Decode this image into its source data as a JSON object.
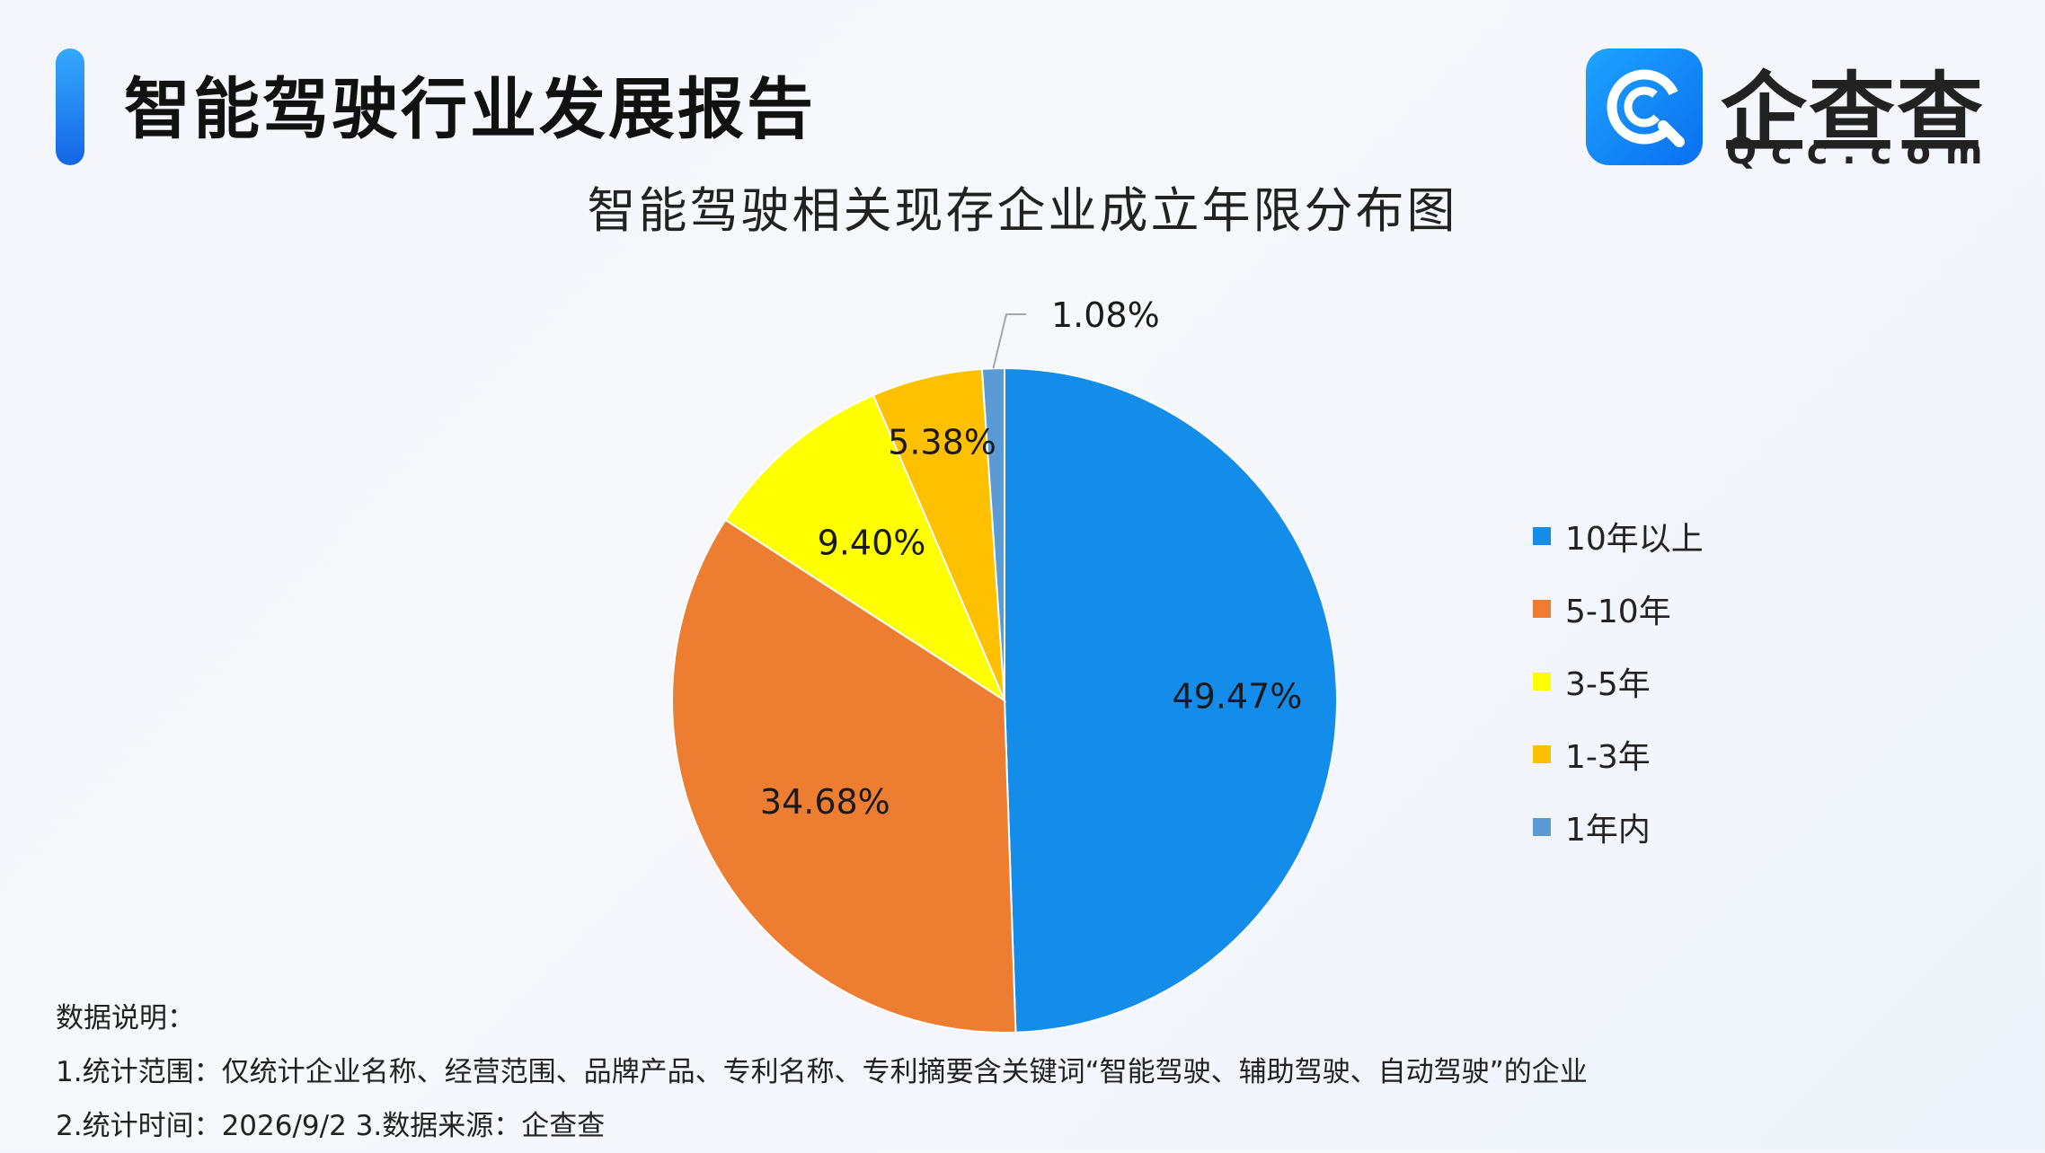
{
  "header": {
    "title": "智能驾驶行业发展报告",
    "logo_name": "企查查",
    "logo_domain": "Qcc.com"
  },
  "chart_data": {
    "type": "pie",
    "title": "智能驾驶相关现存企业成立年限分布图",
    "legend_position": "right",
    "categories": [
      "10年以上",
      "5-10年",
      "3-5年",
      "1-3年",
      "1年内"
    ],
    "values": [
      49.47,
      34.68,
      9.4,
      5.38,
      1.08
    ],
    "labels": [
      "49.47%",
      "34.68%",
      "9.40%",
      "5.38%",
      "1.08%"
    ],
    "colors": [
      "#148cea",
      "#ed7d31",
      "#ffff00",
      "#ffc000",
      "#5b9bd5"
    ]
  },
  "notes": {
    "heading": "数据说明：",
    "line1": "1.统计范围：仅统计企业名称、经营范围、品牌产品、专利名称、专利摘要含关键词“智能驾驶、辅助驾驶、自动驾驶”的企业",
    "line2": "2.统计时间：2026/9/2  3.数据来源：企查查"
  }
}
